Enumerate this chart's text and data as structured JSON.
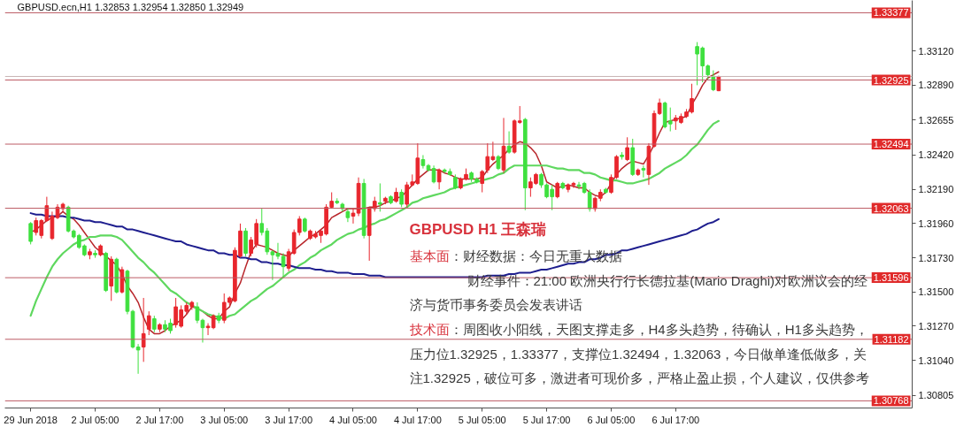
{
  "chart_data": {
    "type": "candlestick",
    "title": "GBPUSD.ecn,H1  1.32853 1.32954 1.32850 1.32949",
    "categories": [
      "29 Jun 2018",
      null,
      null,
      null,
      null,
      null,
      null,
      null,
      null,
      null,
      null,
      null,
      "2 Jul 05:00",
      null,
      null,
      null,
      null,
      null,
      null,
      null,
      null,
      null,
      null,
      null,
      "2 Jul 17:00",
      null,
      null,
      null,
      null,
      null,
      null,
      null,
      null,
      null,
      null,
      null,
      "3 Jul 05:00",
      null,
      null,
      null,
      null,
      null,
      null,
      null,
      null,
      null,
      null,
      null,
      "3 Jul 17:00",
      null,
      null,
      null,
      null,
      null,
      null,
      null,
      null,
      null,
      null,
      null,
      "4 Jul 05:00",
      null,
      null,
      null,
      null,
      null,
      null,
      null,
      null,
      null,
      null,
      null,
      "4 Jul 17:00",
      null,
      null,
      null,
      null,
      null,
      null,
      null,
      null,
      null,
      null,
      null,
      "5 Jul 05:00",
      null,
      null,
      null,
      null,
      null,
      null,
      null,
      null,
      null,
      null,
      null,
      "5 Jul 17:00",
      null,
      null,
      null,
      null,
      null,
      null,
      null,
      null,
      null,
      null,
      null,
      "6 Jul 05:00",
      null,
      null,
      null,
      null,
      null,
      null,
      null,
      null,
      null,
      null,
      null,
      "6 Jul 17:00",
      null,
      null,
      null,
      null,
      null,
      null,
      null,
      null
    ],
    "ohlc": [
      [
        1.3196,
        1.3197,
        1.3182,
        1.3184
      ],
      [
        1.319,
        1.32,
        1.3188,
        1.3198
      ],
      [
        1.3188,
        1.3199,
        1.3186,
        1.3198
      ],
      [
        1.3198,
        1.3214,
        1.3197,
        1.3208
      ],
      [
        1.3186,
        1.3204,
        1.3185,
        1.3201
      ],
      [
        1.32,
        1.3209,
        1.3199,
        1.3207
      ],
      [
        1.3206,
        1.321,
        1.3204,
        1.3209
      ],
      [
        1.3207,
        1.3208,
        1.319,
        1.3191
      ],
      [
        1.3191,
        1.3192,
        1.3186,
        1.3187
      ],
      [
        1.3188,
        1.3189,
        1.3179,
        1.318
      ],
      [
        1.3181,
        1.3182,
        1.3174,
        1.3175
      ],
      [
        1.3175,
        1.3179,
        1.3172,
        1.3177
      ],
      [
        1.3176,
        1.3178,
        1.3173,
        1.3175
      ],
      [
        1.3175,
        1.3182,
        1.3174,
        1.3181
      ],
      [
        1.3176,
        1.3177,
        1.315,
        1.3151
      ],
      [
        1.3154,
        1.3174,
        1.3144,
        1.3172
      ],
      [
        1.3172,
        1.3173,
        1.3149,
        1.315
      ],
      [
        1.315,
        1.3167,
        1.3149,
        1.3165
      ],
      [
        1.3164,
        1.3165,
        1.3135,
        1.3137
      ],
      [
        1.3137,
        1.3138,
        1.3112,
        1.3113
      ],
      [
        1.3113,
        1.3115,
        1.3095,
        1.3111
      ],
      [
        1.3113,
        1.3146,
        1.3103,
        1.3122
      ],
      [
        1.3125,
        1.3137,
        1.3121,
        1.3134
      ],
      [
        1.3132,
        1.3134,
        1.3123,
        1.3125
      ],
      [
        1.3125,
        1.3129,
        1.3123,
        1.3128
      ],
      [
        1.3128,
        1.3131,
        1.3123,
        1.3125
      ],
      [
        1.3129,
        1.3132,
        1.3122,
        1.3124
      ],
      [
        1.3128,
        1.3146,
        1.3126,
        1.314
      ],
      [
        1.3127,
        1.3141,
        1.3126,
        1.3138
      ],
      [
        1.3137,
        1.3143,
        1.3135,
        1.3141
      ],
      [
        1.314,
        1.3144,
        1.3138,
        1.3143
      ],
      [
        1.314,
        1.3143,
        1.3129,
        1.3131
      ],
      [
        1.3131,
        1.3132,
        1.3116,
        1.3126
      ],
      [
        1.3126,
        1.3129,
        1.3121,
        1.3127
      ],
      [
        1.3126,
        1.3135,
        1.3125,
        1.3134
      ],
      [
        1.3134,
        1.3136,
        1.3129,
        1.3131
      ],
      [
        1.3131,
        1.3149,
        1.3129,
        1.3143
      ],
      [
        1.3143,
        1.3147,
        1.3141,
        1.3146
      ],
      [
        1.3144,
        1.318,
        1.3143,
        1.3178
      ],
      [
        1.3174,
        1.3196,
        1.3173,
        1.3191
      ],
      [
        1.3191,
        1.3193,
        1.3174,
        1.3176
      ],
      [
        1.3176,
        1.3187,
        1.3174,
        1.3185
      ],
      [
        1.3182,
        1.3199,
        1.318,
        1.3196
      ],
      [
        1.3196,
        1.3206,
        1.3188,
        1.319
      ],
      [
        1.3191,
        1.3193,
        1.3175,
        1.3177
      ],
      [
        1.3177,
        1.3178,
        1.3158,
        1.3175
      ],
      [
        1.3176,
        1.3183,
        1.3172,
        1.3174
      ],
      [
        1.3174,
        1.3176,
        1.316,
        1.3167
      ],
      [
        1.3166,
        1.3179,
        1.3164,
        1.3177
      ],
      [
        1.3176,
        1.3192,
        1.3175,
        1.319
      ],
      [
        1.319,
        1.3201,
        1.3188,
        1.3199
      ],
      [
        1.3199,
        1.32,
        1.319,
        1.3191
      ],
      [
        1.3186,
        1.3192,
        1.3185,
        1.3191
      ],
      [
        1.3187,
        1.3191,
        1.3186,
        1.3189
      ],
      [
        1.3188,
        1.3192,
        1.3183,
        1.3191
      ],
      [
        1.3189,
        1.3209,
        1.3188,
        1.3207
      ],
      [
        1.3207,
        1.3217,
        1.3206,
        1.3211
      ],
      [
        1.3211,
        1.3213,
        1.3209,
        1.321
      ],
      [
        1.3209,
        1.321,
        1.3204,
        1.3206
      ],
      [
        1.3204,
        1.3206,
        1.3197,
        1.32
      ],
      [
        1.3201,
        1.3206,
        1.3196,
        1.3203
      ],
      [
        1.3203,
        1.3227,
        1.3201,
        1.3223
      ],
      [
        1.3223,
        1.3226,
        1.3186,
        1.3188
      ],
      [
        1.3188,
        1.3207,
        1.3171,
        1.3206
      ],
      [
        1.3206,
        1.3214,
        1.3204,
        1.3211
      ],
      [
        1.321,
        1.3223,
        1.3204,
        1.3209
      ],
      [
        1.3211,
        1.3214,
        1.3209,
        1.3213
      ],
      [
        1.3214,
        1.3215,
        1.3209,
        1.321
      ],
      [
        1.3211,
        1.322,
        1.321,
        1.3217
      ],
      [
        1.3217,
        1.3219,
        1.3207,
        1.3209
      ],
      [
        1.3209,
        1.3224,
        1.3207,
        1.3222
      ],
      [
        1.3222,
        1.3229,
        1.3221,
        1.3224
      ],
      [
        1.3223,
        1.325,
        1.3222,
        1.324
      ],
      [
        1.3239,
        1.3242,
        1.3233,
        1.3235
      ],
      [
        1.3235,
        1.3236,
        1.3231,
        1.3232
      ],
      [
        1.3233,
        1.3235,
        1.3223,
        1.3224
      ],
      [
        1.3224,
        1.3233,
        1.3219,
        1.3232
      ],
      [
        1.3232,
        1.3233,
        1.323,
        1.3231
      ],
      [
        1.3231,
        1.3233,
        1.3228,
        1.3229
      ],
      [
        1.3227,
        1.3229,
        1.3219,
        1.322
      ],
      [
        1.322,
        1.3227,
        1.3219,
        1.3226
      ],
      [
        1.3226,
        1.3233,
        1.3225,
        1.3229
      ],
      [
        1.323,
        1.3231,
        1.3224,
        1.3226
      ],
      [
        1.3226,
        1.3227,
        1.3223,
        1.3224
      ],
      [
        1.3223,
        1.3232,
        1.3217,
        1.3231
      ],
      [
        1.3232,
        1.325,
        1.323,
        1.3241
      ],
      [
        1.3239,
        1.3251,
        1.3238,
        1.3241
      ],
      [
        1.3241,
        1.3242,
        1.3232,
        1.3233
      ],
      [
        1.3232,
        1.3267,
        1.323,
        1.3248
      ],
      [
        1.3248,
        1.3258,
        1.3243,
        1.3244
      ],
      [
        1.3244,
        1.3266,
        1.3243,
        1.3265
      ],
      [
        1.3264,
        1.3275,
        1.3263,
        1.3265
      ],
      [
        1.3266,
        1.3267,
        1.3205,
        1.322
      ],
      [
        1.322,
        1.3227,
        1.3214,
        1.3224
      ],
      [
        1.3223,
        1.323,
        1.3222,
        1.3229
      ],
      [
        1.3229,
        1.323,
        1.322,
        1.3222
      ],
      [
        1.3222,
        1.3223,
        1.3213,
        1.3214
      ],
      [
        1.3219,
        1.3222,
        1.3205,
        1.3214
      ],
      [
        1.3214,
        1.3224,
        1.3213,
        1.3223
      ],
      [
        1.3223,
        1.3224,
        1.3219,
        1.322
      ],
      [
        1.3219,
        1.3223,
        1.3217,
        1.3222
      ],
      [
        1.3222,
        1.3224,
        1.322,
        1.3223
      ],
      [
        1.3222,
        1.3224,
        1.3219,
        1.3221
      ],
      [
        1.3223,
        1.3224,
        1.3216,
        1.3217
      ],
      [
        1.3217,
        1.3219,
        1.3204,
        1.3206
      ],
      [
        1.3206,
        1.3214,
        1.3204,
        1.3213
      ],
      [
        1.3213,
        1.3219,
        1.3211,
        1.3217
      ],
      [
        1.3219,
        1.322,
        1.3216,
        1.3217
      ],
      [
        1.3217,
        1.3229,
        1.3216,
        1.3227
      ],
      [
        1.3227,
        1.3242,
        1.3226,
        1.3241
      ],
      [
        1.3242,
        1.3244,
        1.3239,
        1.3241
      ],
      [
        1.3239,
        1.3254,
        1.3238,
        1.3247
      ],
      [
        1.3247,
        1.3253,
        1.3228,
        1.3229
      ],
      [
        1.3229,
        1.3233,
        1.3228,
        1.3232
      ],
      [
        1.3233,
        1.3235,
        1.3227,
        1.3232
      ],
      [
        1.3229,
        1.325,
        1.3222,
        1.3248
      ],
      [
        1.3248,
        1.3272,
        1.3247,
        1.327
      ],
      [
        1.327,
        1.328,
        1.3269,
        1.3277
      ],
      [
        1.3277,
        1.3278,
        1.326,
        1.3261
      ],
      [
        1.3265,
        1.3274,
        1.3258,
        1.3263
      ],
      [
        1.3265,
        1.3269,
        1.3259,
        1.3267
      ],
      [
        1.3264,
        1.327,
        1.3263,
        1.3268
      ],
      [
        1.3268,
        1.3273,
        1.3267,
        1.3271
      ],
      [
        1.3271,
        1.329,
        1.327,
        1.328
      ],
      [
        1.3315,
        1.3318,
        1.3289,
        1.331
      ],
      [
        1.3314,
        1.3315,
        1.3291,
        1.3302
      ],
      [
        1.3302,
        1.3303,
        1.3293,
        1.3296
      ],
      [
        1.3295,
        1.3299,
        1.3285,
        1.3286
      ],
      [
        1.32853,
        1.32954,
        1.3285,
        1.32949
      ]
    ],
    "colors": [
      "#3fe03f",
      "#e8262d",
      "#e8262d",
      "#e8262d",
      "#e8262d",
      "#e8262d",
      "#e8262d",
      "#3fe03f",
      "#3fe03f",
      "#3fe03f",
      "#3fe03f",
      "#e8262d",
      "#3fe03f",
      "#e8262d",
      "#3fe03f",
      "#e8262d",
      "#3fe03f",
      "#e8262d",
      "#3fe03f",
      "#3fe03f",
      "#3fe03f",
      "#e8262d",
      "#e8262d",
      "#3fe03f",
      "#e8262d",
      "#3fe03f",
      "#3fe03f",
      "#e8262d",
      "#e8262d",
      "#e8262d",
      "#e8262d",
      "#3fe03f",
      "#3fe03f",
      "#e8262d",
      "#e8262d",
      "#3fe03f",
      "#e8262d",
      "#e8262d",
      "#e8262d",
      "#e8262d",
      "#3fe03f",
      "#e8262d",
      "#e8262d",
      "#3fe03f",
      "#3fe03f",
      "#3fe03f",
      "#3fe03f",
      "#3fe03f",
      "#e8262d",
      "#e8262d",
      "#e8262d",
      "#3fe03f",
      "#e8262d",
      "#e8262d",
      "#e8262d",
      "#e8262d",
      "#e8262d",
      "#3fe03f",
      "#3fe03f",
      "#3fe03f",
      "#e8262d",
      "#e8262d",
      "#3fe03f",
      "#e8262d",
      "#e8262d",
      "#3fe03f",
      "#e8262d",
      "#3fe03f",
      "#e8262d",
      "#3fe03f",
      "#e8262d",
      "#e8262d",
      "#e8262d",
      "#3fe03f",
      "#3fe03f",
      "#3fe03f",
      "#e8262d",
      "#3fe03f",
      "#3fe03f",
      "#3fe03f",
      "#e8262d",
      "#e8262d",
      "#3fe03f",
      "#3fe03f",
      "#e8262d",
      "#e8262d",
      "#e8262d",
      "#3fe03f",
      "#e8262d",
      "#3fe03f",
      "#e8262d",
      "#e8262d",
      "#3fe03f",
      "#e8262d",
      "#e8262d",
      "#3fe03f",
      "#3fe03f",
      "#3fe03f",
      "#e8262d",
      "#3fe03f",
      "#e8262d",
      "#e8262d",
      "#3fe03f",
      "#3fe03f",
      "#3fe03f",
      "#e8262d",
      "#e8262d",
      "#3fe03f",
      "#e8262d",
      "#e8262d",
      "#3fe03f",
      "#e8262d",
      "#3fe03f",
      "#e8262d",
      "#3fe03f",
      "#e8262d",
      "#e8262d",
      "#e8262d",
      "#3fe03f",
      "#3fe03f",
      "#e8262d",
      "#e8262d",
      "#e8262d",
      "#e8262d",
      "#3fe03f",
      "#3fe03f",
      "#3fe03f",
      "#3fe03f",
      "#e8262d"
    ],
    "series": [
      {
        "type": "line",
        "color": "#b8262b",
        "values": [
          1.319,
          1.3192,
          1.3195,
          1.3198,
          1.32,
          1.3201,
          1.3204,
          1.3201,
          1.3199,
          1.3195,
          1.319,
          1.3185,
          1.318,
          1.3177,
          1.3174,
          1.3171,
          1.3168,
          1.3162,
          1.3154,
          1.3149,
          1.3143,
          1.3133,
          1.3125,
          1.3122,
          1.3122,
          1.3124,
          1.3127,
          1.3129,
          1.3131,
          1.3135,
          1.314,
          1.3139,
          1.3137,
          1.3134,
          1.3132,
          1.3132,
          1.3137,
          1.314,
          1.3149,
          1.3156,
          1.3167,
          1.3177,
          1.3182,
          1.3181,
          1.318,
          1.3178,
          1.3176,
          1.3175,
          1.3174,
          1.3178,
          1.3181,
          1.3184,
          1.3187,
          1.3189,
          1.3192,
          1.3195,
          1.32,
          1.3202,
          1.3204,
          1.3206,
          1.3206,
          1.3206,
          1.3206,
          1.3207,
          1.3207,
          1.3208,
          1.321,
          1.3211,
          1.3213,
          1.3214,
          1.3218,
          1.3222,
          1.3226,
          1.3229,
          1.3232,
          1.3232,
          1.3232,
          1.323,
          1.3229,
          1.3227,
          1.3226,
          1.3226,
          1.3226,
          1.3226,
          1.3227,
          1.3232,
          1.3236,
          1.3239,
          1.3242,
          1.3246,
          1.3249,
          1.3251,
          1.325,
          1.3247,
          1.3243,
          1.3235,
          1.3224,
          1.3222,
          1.322,
          1.3221,
          1.3222,
          1.3221,
          1.322,
          1.322,
          1.3217,
          1.3215,
          1.3214,
          1.3217,
          1.3223,
          1.3229,
          1.3233,
          1.3236,
          1.3238,
          1.3237,
          1.3236,
          1.3242,
          1.3249,
          1.3257,
          1.3264,
          1.3265,
          1.3266,
          1.3267,
          1.3268,
          1.3276,
          1.3282,
          1.3289,
          1.3294,
          1.3296,
          1.3298
        ]
      },
      {
        "type": "line",
        "color": "#5fd85f",
        "values": [
          1.3134,
          1.3144,
          1.3152,
          1.316,
          1.3167,
          1.3172,
          1.3176,
          1.3179,
          1.3182,
          1.3184,
          1.3185,
          1.3187,
          1.3187,
          1.3188,
          1.3188,
          1.3188,
          1.3187,
          1.3185,
          1.3181,
          1.3177,
          1.3173,
          1.317,
          1.3166,
          1.3163,
          1.3159,
          1.3155,
          1.3151,
          1.3149,
          1.3146,
          1.3143,
          1.3141,
          1.3139,
          1.3137,
          1.3135,
          1.3134,
          1.3133,
          1.3132,
          1.3134,
          1.3135,
          1.3138,
          1.3141,
          1.3144,
          1.3146,
          1.3149,
          1.3152,
          1.3154,
          1.3157,
          1.316,
          1.3163,
          1.3165,
          1.3168,
          1.317,
          1.3173,
          1.3175,
          1.3178,
          1.318,
          1.3182,
          1.3185,
          1.3187,
          1.3189,
          1.319,
          1.3192,
          1.3193,
          1.3195,
          1.3196,
          1.3198,
          1.3199,
          1.3201,
          1.3203,
          1.3205,
          1.3207,
          1.321,
          1.3211,
          1.3213,
          1.3214,
          1.3215,
          1.3216,
          1.3217,
          1.3219,
          1.322,
          1.3221,
          1.3222,
          1.3223,
          1.3224,
          1.3225,
          1.3226,
          1.3227,
          1.3229,
          1.323,
          1.3233,
          1.3235,
          1.3235,
          1.3235,
          1.3235,
          1.3235,
          1.3235,
          1.3235,
          1.3234,
          1.3233,
          1.3233,
          1.3232,
          1.3232,
          1.3232,
          1.323,
          1.323,
          1.3229,
          1.3227,
          1.3226,
          1.3225,
          1.3225,
          1.3224,
          1.3223,
          1.3223,
          1.3224,
          1.3225,
          1.3226,
          1.3228,
          1.323,
          1.3233,
          1.3235,
          1.3237,
          1.3239,
          1.3242,
          1.3246,
          1.3249,
          1.3254,
          1.3259,
          1.3263,
          1.3265
        ]
      },
      {
        "type": "line",
        "color": "#1e1e8e",
        "values": [
          1.3203,
          1.3202,
          1.3202,
          1.3201,
          1.3201,
          1.3201,
          1.3201,
          1.32,
          1.32,
          1.3199,
          1.3198,
          1.3198,
          1.3197,
          1.3197,
          1.3196,
          1.3195,
          1.3194,
          1.3194,
          1.3192,
          1.3192,
          1.3191,
          1.319,
          1.3189,
          1.3188,
          1.3187,
          1.3186,
          1.3185,
          1.3184,
          1.3184,
          1.3182,
          1.3181,
          1.318,
          1.3179,
          1.3178,
          1.3178,
          1.3176,
          1.3176,
          1.3175,
          1.3175,
          1.3173,
          1.3173,
          1.3172,
          1.3172,
          1.317,
          1.317,
          1.3169,
          1.3169,
          1.3168,
          1.3168,
          1.3167,
          1.3166,
          1.3166,
          1.3166,
          1.3165,
          1.3165,
          1.3164,
          1.3164,
          1.3163,
          1.3163,
          1.3163,
          1.3162,
          1.3162,
          1.3162,
          1.3161,
          1.3161,
          1.3161,
          1.316,
          1.316,
          1.316,
          1.316,
          1.316,
          1.316,
          1.316,
          1.316,
          1.316,
          1.316,
          1.316,
          1.316,
          1.316,
          1.316,
          1.316,
          1.316,
          1.316,
          1.316,
          1.316,
          1.3161,
          1.3161,
          1.3161,
          1.3161,
          1.3162,
          1.3162,
          1.3163,
          1.3163,
          1.3163,
          1.3164,
          1.3165,
          1.3165,
          1.3166,
          1.3167,
          1.3168,
          1.3169,
          1.3169,
          1.317,
          1.317,
          1.3172,
          1.3172,
          1.3173,
          1.3175,
          1.3175,
          1.3176,
          1.3178,
          1.3178,
          1.3179,
          1.318,
          1.3181,
          1.3182,
          1.3183,
          1.3184,
          1.3185,
          1.3186,
          1.3187,
          1.3188,
          1.3189,
          1.3191,
          1.3192,
          1.3194,
          1.3196,
          1.3197,
          1.3199
        ]
      }
    ],
    "ylim": [
      1.3072,
      1.3346
    ],
    "yticks": [
      {
        "value": 1.3312,
        "label": "1.33120"
      },
      {
        "value": 1.3289,
        "label": "1.32890"
      },
      {
        "value": 1.32655,
        "label": "1.32655"
      },
      {
        "value": 1.3242,
        "label": "1.32420"
      },
      {
        "value": 1.3219,
        "label": "1.32190"
      },
      {
        "value": 1.3196,
        "label": "1.31960"
      },
      {
        "value": 1.3173,
        "label": "1.31730"
      },
      {
        "value": 1.315,
        "label": "1.31500"
      },
      {
        "value": 1.3127,
        "label": "1.31270"
      },
      {
        "value": 1.3104,
        "label": "1.31040"
      },
      {
        "value": 1.30805,
        "label": "1.30805"
      }
    ],
    "ref_lines": [
      {
        "axis": "y",
        "value": 1.33377,
        "label": "1.33377",
        "color": "#bd5c66"
      },
      {
        "axis": "y",
        "value": 1.32949,
        "color": "#c8b4b4"
      },
      {
        "axis": "y",
        "value": 1.32925,
        "label": "1.32925",
        "color": "#bd5c66"
      },
      {
        "axis": "y",
        "value": 1.32494,
        "label": "1.32494",
        "color": "#bd5c66"
      },
      {
        "axis": "y",
        "value": 1.32063,
        "label": "1.32063",
        "color": "#bd5c66"
      },
      {
        "axis": "y",
        "value": 1.31596,
        "label": "1.31596",
        "color": "#bd5c66"
      },
      {
        "axis": "y",
        "value": 1.31182,
        "label": "1.31182",
        "color": "#bd5c66"
      },
      {
        "axis": "y",
        "value": 1.30768,
        "label": "1.30768",
        "color": "#bd5c66"
      }
    ],
    "annotations": [
      "GBPUSD H1 王森瑞",
      "基本面",
      "：财经数据：今日无重大数据",
      "财经事件：21:00 欧洲央行行长德拉基(Mario Draghi)对欧洲议会的经",
      "济与货币事务委员会发表讲话",
      "技术面",
      "：周图收小阳线，天图支撑走多，H4多头趋势，待确认，H1多头趋势，",
      "压力位1.32925，1.33377，支撑位1.32494，1.32063，今日做单逢低做多，关",
      "注1.32925，破位可多，激进者可现价多，严格止盈止损，个人建议，仅供参考"
    ]
  }
}
